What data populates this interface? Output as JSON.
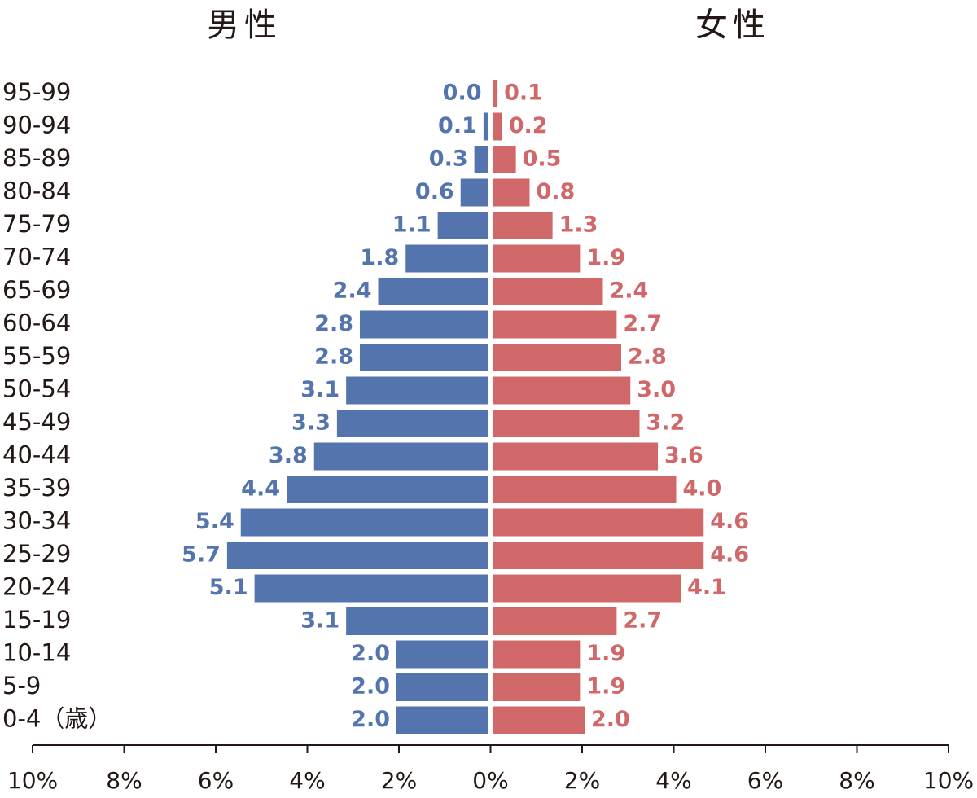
{
  "chart_data": {
    "type": "pyramid",
    "categories": [
      "95-99",
      "90-94",
      "85-89",
      "80-84",
      "75-79",
      "70-74",
      "65-69",
      "60-64",
      "55-59",
      "50-54",
      "45-49",
      "40-44",
      "35-39",
      "30-34",
      "25-29",
      "20-24",
      "15-19",
      "10-14",
      "5-9",
      "0-4（歳）"
    ],
    "series": [
      {
        "name": "男性",
        "color": "#5474ae",
        "side": "left",
        "values": [
          0.0,
          0.1,
          0.3,
          0.6,
          1.1,
          1.8,
          2.4,
          2.8,
          2.8,
          3.1,
          3.3,
          3.8,
          4.4,
          5.4,
          5.7,
          5.1,
          3.1,
          2.0,
          2.0,
          2.0
        ],
        "value_labels": [
          "0.0",
          "0.1",
          "0.3",
          "0.6",
          "1.1",
          "1.8",
          "2.4",
          "2.8",
          "2.8",
          "3.1",
          "3.3",
          "3.8",
          "4.4",
          "5.4",
          "5.7",
          "5.1",
          "3.1",
          "2.0",
          "2.0",
          "2.0"
        ]
      },
      {
        "name": "女性",
        "color": "#d0686a",
        "side": "right",
        "values": [
          0.1,
          0.2,
          0.5,
          0.8,
          1.3,
          1.9,
          2.4,
          2.7,
          2.8,
          3.0,
          3.2,
          3.6,
          4.0,
          4.6,
          4.6,
          4.1,
          2.7,
          1.9,
          1.9,
          2.0
        ],
        "value_labels": [
          "0.1",
          "0.2",
          "0.5",
          "0.8",
          "1.3",
          "1.9",
          "2.4",
          "2.7",
          "2.8",
          "3.0",
          "3.2",
          "3.6",
          "4.0",
          "4.6",
          "4.6",
          "4.1",
          "2.7",
          "1.9",
          "1.9",
          "2.0"
        ]
      }
    ],
    "xlim": [
      -10,
      10
    ],
    "xticks": [
      {
        "value": -10,
        "label": "10%"
      },
      {
        "value": -8,
        "label": "8%"
      },
      {
        "value": -6,
        "label": "6%"
      },
      {
        "value": -4,
        "label": "4%"
      },
      {
        "value": -2,
        "label": "2%"
      },
      {
        "value": 0,
        "label": "0%"
      },
      {
        "value": 2,
        "label": "2%"
      },
      {
        "value": 4,
        "label": "4%"
      },
      {
        "value": 6,
        "label": "6%"
      },
      {
        "value": 8,
        "label": "8%"
      },
      {
        "value": 10,
        "label": "10%"
      }
    ]
  }
}
